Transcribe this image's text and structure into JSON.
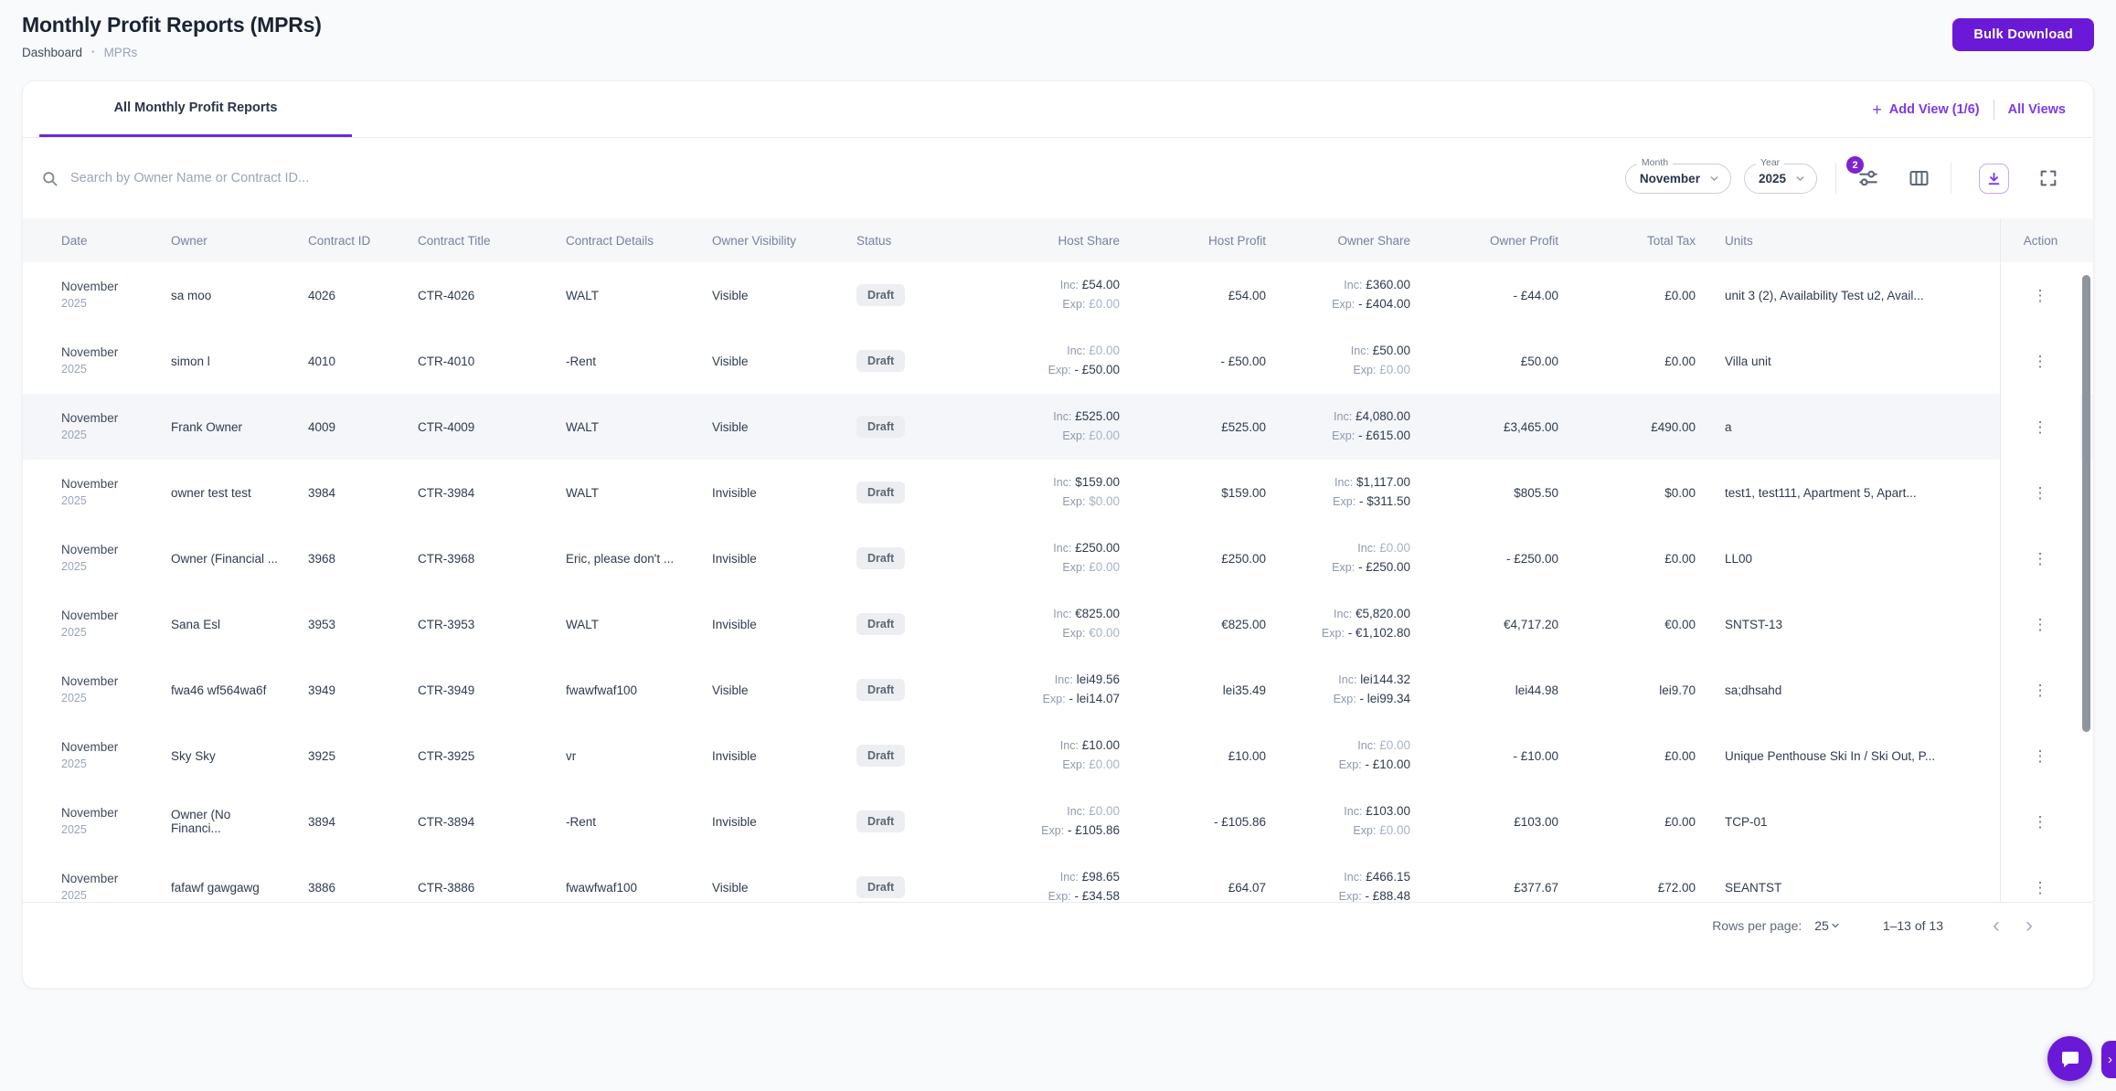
{
  "colors": {
    "accent": "#6a1ad6",
    "link": "#7c3aed",
    "tab_underline": "#6d28d9"
  },
  "header": {
    "title": "Monthly Profit Reports (MPRs)",
    "breadcrumb_home": "Dashboard",
    "breadcrumb_separator": "•",
    "breadcrumb_current": "MPRs",
    "bulk_download_label": "Bulk Download"
  },
  "views_bar": {
    "active_tab": "All Monthly Profit Reports",
    "add_view_plus": "+",
    "add_view_label": "Add View (1/6)",
    "all_views_label": "All Views"
  },
  "filters": {
    "search_placeholder": "Search by Owner Name or Contract ID...",
    "month_label": "Month",
    "month_value": "November",
    "year_label": "Year",
    "year_value": "2025",
    "filter_badge_count": "2"
  },
  "table": {
    "inc_label": "Inc:",
    "exp_label": "Exp:",
    "columns": [
      {
        "id": "date",
        "label": "Date",
        "align": "left"
      },
      {
        "id": "owner",
        "label": "Owner",
        "align": "left"
      },
      {
        "id": "contract_id",
        "label": "Contract ID",
        "align": "left"
      },
      {
        "id": "contract_title",
        "label": "Contract Title",
        "align": "left"
      },
      {
        "id": "contract_details",
        "label": "Contract Details",
        "align": "left"
      },
      {
        "id": "owner_visibility",
        "label": "Owner Visibility",
        "align": "left"
      },
      {
        "id": "status",
        "label": "Status",
        "align": "left"
      },
      {
        "id": "host_share",
        "label": "Host Share",
        "align": "right"
      },
      {
        "id": "host_profit",
        "label": "Host Profit",
        "align": "right"
      },
      {
        "id": "owner_share",
        "label": "Owner Share",
        "align": "right"
      },
      {
        "id": "owner_profit",
        "label": "Owner Profit",
        "align": "right"
      },
      {
        "id": "total_tax",
        "label": "Total Tax",
        "align": "right"
      },
      {
        "id": "units",
        "label": "Units",
        "align": "left"
      },
      {
        "id": "action",
        "label": "Action",
        "align": "center"
      }
    ],
    "rows": [
      {
        "date_month": "November",
        "date_year": "2025",
        "owner": "sa moo",
        "contract_id": "4026",
        "contract_title": "CTR-4026",
        "contract_details": "WALT",
        "owner_visibility": "Visible",
        "status": "Draft",
        "host_share_inc": "£54.00",
        "host_share_exp": "£0.00",
        "host_profit": "£54.00",
        "owner_share_inc": "£360.00",
        "owner_share_exp": "- £404.00",
        "owner_profit": "- £44.00",
        "total_tax": "£0.00",
        "units": "unit 3 (2), Availability Test u2, Avail...",
        "highlighted": false
      },
      {
        "date_month": "November",
        "date_year": "2025",
        "owner": "simon l",
        "contract_id": "4010",
        "contract_title": "CTR-4010",
        "contract_details": "-Rent",
        "owner_visibility": "Visible",
        "status": "Draft",
        "host_share_inc": "£0.00",
        "host_share_exp": "- £50.00",
        "host_profit": "- £50.00",
        "owner_share_inc": "£50.00",
        "owner_share_exp": "£0.00",
        "owner_profit": "£50.00",
        "total_tax": "£0.00",
        "units": "Villa unit",
        "highlighted": false
      },
      {
        "date_month": "November",
        "date_year": "2025",
        "owner": "Frank Owner",
        "contract_id": "4009",
        "contract_title": "CTR-4009",
        "contract_details": "WALT",
        "owner_visibility": "Visible",
        "status": "Draft",
        "host_share_inc": "£525.00",
        "host_share_exp": "£0.00",
        "host_profit": "£525.00",
        "owner_share_inc": "£4,080.00",
        "owner_share_exp": "- £615.00",
        "owner_profit": "£3,465.00",
        "total_tax": "£490.00",
        "units": "a",
        "highlighted": true
      },
      {
        "date_month": "November",
        "date_year": "2025",
        "owner": "owner test test",
        "contract_id": "3984",
        "contract_title": "CTR-3984",
        "contract_details": "WALT",
        "owner_visibility": "Invisible",
        "status": "Draft",
        "host_share_inc": "$159.00",
        "host_share_exp": "$0.00",
        "host_profit": "$159.00",
        "owner_share_inc": "$1,117.00",
        "owner_share_exp": "- $311.50",
        "owner_profit": "$805.50",
        "total_tax": "$0.00",
        "units": "test1, test111, Apartment 5, Apart...",
        "highlighted": false
      },
      {
        "date_month": "November",
        "date_year": "2025",
        "owner": "Owner (Financial ...",
        "contract_id": "3968",
        "contract_title": "CTR-3968",
        "contract_details": "Eric, please don't ...",
        "owner_visibility": "Invisible",
        "status": "Draft",
        "host_share_inc": "£250.00",
        "host_share_exp": "£0.00",
        "host_profit": "£250.00",
        "owner_share_inc": "£0.00",
        "owner_share_exp": "- £250.00",
        "owner_profit": "- £250.00",
        "total_tax": "£0.00",
        "units": "LL00",
        "highlighted": false
      },
      {
        "date_month": "November",
        "date_year": "2025",
        "owner": "Sana Esl",
        "contract_id": "3953",
        "contract_title": "CTR-3953",
        "contract_details": "WALT",
        "owner_visibility": "Invisible",
        "status": "Draft",
        "host_share_inc": "€825.00",
        "host_share_exp": "€0.00",
        "host_profit": "€825.00",
        "owner_share_inc": "€5,820.00",
        "owner_share_exp": "- €1,102.80",
        "owner_profit": "€4,717.20",
        "total_tax": "€0.00",
        "units": "SNTST-13",
        "highlighted": false
      },
      {
        "date_month": "November",
        "date_year": "2025",
        "owner": "fwa46 wf564wa6f",
        "contract_id": "3949",
        "contract_title": "CTR-3949",
        "contract_details": "fwawfwaf100",
        "owner_visibility": "Visible",
        "status": "Draft",
        "host_share_inc": "lei49.56",
        "host_share_exp": "- lei14.07",
        "host_profit": "lei35.49",
        "owner_share_inc": "lei144.32",
        "owner_share_exp": "- lei99.34",
        "owner_profit": "lei44.98",
        "total_tax": "lei9.70",
        "units": "sa;dhsahd",
        "highlighted": false
      },
      {
        "date_month": "November",
        "date_year": "2025",
        "owner": "Sky Sky",
        "contract_id": "3925",
        "contract_title": "CTR-3925",
        "contract_details": "vr",
        "owner_visibility": "Invisible",
        "status": "Draft",
        "host_share_inc": "£10.00",
        "host_share_exp": "£0.00",
        "host_profit": "£10.00",
        "owner_share_inc": "£0.00",
        "owner_share_exp": "- £10.00",
        "owner_profit": "- £10.00",
        "total_tax": "£0.00",
        "units": "Unique Penthouse Ski In / Ski Out, P...",
        "highlighted": false
      },
      {
        "date_month": "November",
        "date_year": "2025",
        "owner": "Owner (No Financi...",
        "contract_id": "3894",
        "contract_title": "CTR-3894",
        "contract_details": "-Rent",
        "owner_visibility": "Invisible",
        "status": "Draft",
        "host_share_inc": "£0.00",
        "host_share_exp": "- £105.86",
        "host_profit": "- £105.86",
        "owner_share_inc": "£103.00",
        "owner_share_exp": "£0.00",
        "owner_profit": "£103.00",
        "total_tax": "£0.00",
        "units": "TCP-01",
        "highlighted": false
      },
      {
        "date_month": "November",
        "date_year": "2025",
        "owner": "fafawf gawgawg",
        "contract_id": "3886",
        "contract_title": "CTR-3886",
        "contract_details": "fwawfwaf100",
        "owner_visibility": "Visible",
        "status": "Draft",
        "host_share_inc": "£98.65",
        "host_share_exp": "- £34.58",
        "host_profit": "£64.07",
        "owner_share_inc": "£466.15",
        "owner_share_exp": "- £88.48",
        "owner_profit": "£377.67",
        "total_tax": "£72.00",
        "units": "SEANTST",
        "highlighted": false
      }
    ]
  },
  "pagination": {
    "rows_per_page_label": "Rows per page:",
    "rows_per_page_value": "25",
    "range_label": "1–13 of 13"
  },
  "icons": {
    "kebab": "⋮",
    "chevron_left": "‹",
    "chevron_right": "›",
    "edge_tab_chevron": "›"
  }
}
